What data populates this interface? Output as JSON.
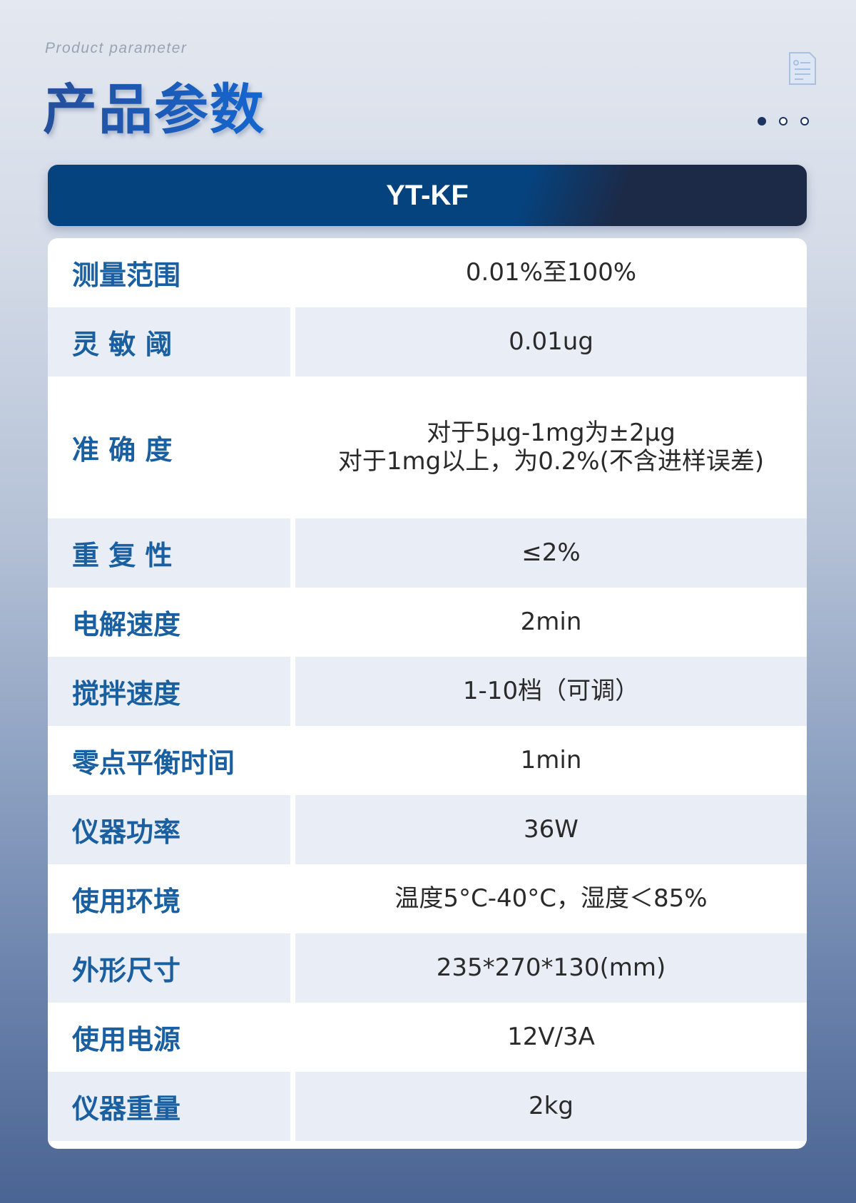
{
  "page": {
    "subtitle": "Product parameter",
    "title": "产品参数",
    "icons": {
      "document": "document-icon"
    },
    "pagination": {
      "total": 3,
      "active": 1
    }
  },
  "model": "YT-KF",
  "colors": {
    "accent": "#05437f",
    "label": "#1a5fa0",
    "row_shade": "#e9eef6"
  },
  "params": [
    {
      "label": "测量范围",
      "value": [
        "0.01%至100%"
      ]
    },
    {
      "label": "灵 敏 阈",
      "value": [
        "0.01ug"
      ]
    },
    {
      "label": "准 确 度",
      "value": [
        "对于5μg-1mg为±2μg",
        "对于1mg以上，为0.2%(不含进样误差)"
      ]
    },
    {
      "label": "重 复 性",
      "value": [
        "≤2%"
      ]
    },
    {
      "label": "电解速度",
      "value": [
        "2min"
      ]
    },
    {
      "label": "搅拌速度",
      "value": [
        "1-10档（可调）"
      ]
    },
    {
      "label": "零点平衡时间",
      "value": [
        "1min"
      ]
    },
    {
      "label": "仪器功率",
      "value": [
        "36W"
      ]
    },
    {
      "label": "使用环境",
      "value": [
        "温度5°C-40°C，湿度＜85%"
      ]
    },
    {
      "label": "外形尺寸",
      "value": [
        "235*270*130(mm)"
      ]
    },
    {
      "label": "使用电源",
      "value": [
        "12V/3A"
      ]
    },
    {
      "label": "仪器重量",
      "value": [
        "2kg"
      ]
    }
  ]
}
